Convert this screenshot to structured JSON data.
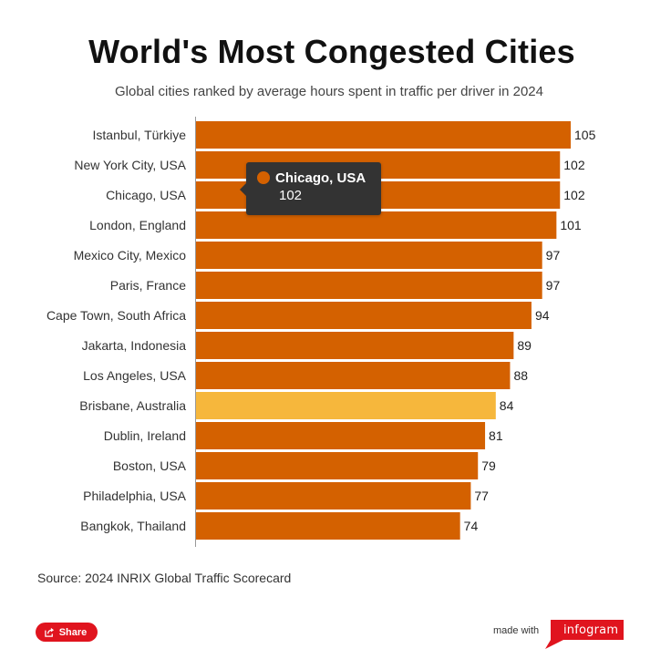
{
  "header": {
    "title": "World's Most Congested Cities",
    "subtitle": "Global cities ranked by average hours spent in traffic per driver in 2024"
  },
  "chart_data": {
    "type": "bar",
    "orientation": "horizontal",
    "categories": [
      "Istanbul, Türkiye",
      "New York City, USA",
      "Chicago, USA",
      "London, England",
      "Mexico City, Mexico",
      "Paris, France",
      "Cape Town, South Africa",
      "Jakarta, Indonesia",
      "Los Angeles, USA",
      "Brisbane, Australia",
      "Dublin, Ireland",
      "Boston, USA",
      "Philadelphia, USA",
      "Bangkok, Thailand"
    ],
    "values": [
      105,
      102,
      102,
      101,
      97,
      97,
      94,
      89,
      88,
      84,
      81,
      79,
      77,
      74
    ],
    "xlim": [
      0,
      105
    ],
    "grid": false,
    "legend": "none",
    "bar_color": "#d46100",
    "highlight_color": "#f6b73c",
    "highlight_category": "Brisbane, Australia"
  },
  "tooltip": {
    "name": "Chicago, USA",
    "value": "102",
    "color": "#d46100"
  },
  "footer": {
    "source": "Source: 2024 INRIX Global Traffic Scorecard",
    "share_label": "Share",
    "made_with": "made with",
    "brand": "infogram",
    "brand_color": "#e0141e"
  }
}
